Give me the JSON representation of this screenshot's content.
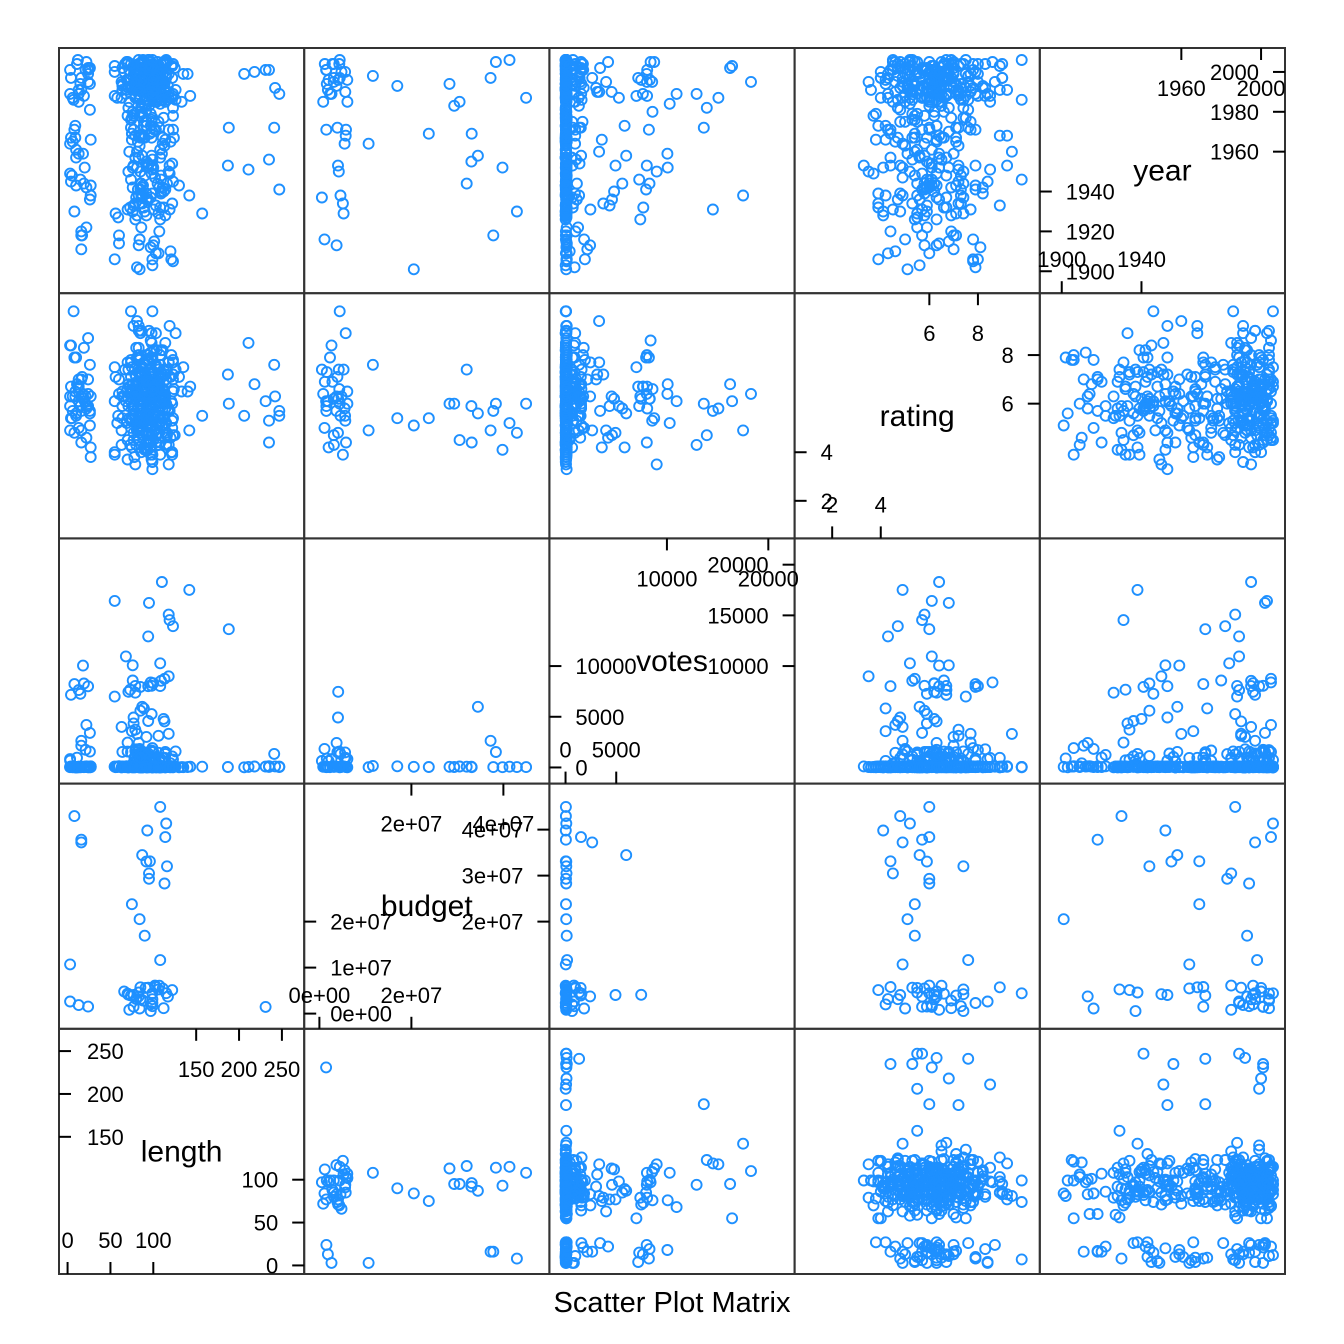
{
  "chart_data": {
    "type": "scatter",
    "title": "",
    "xlabel": "Scatter Plot Matrix",
    "ylabel": "",
    "grid": false,
    "legend": "none",
    "marker": "open-circle",
    "point_color": "#1E90FF",
    "variables": [
      {
        "name": "length",
        "ticks_bottom": [
          0,
          50,
          100
        ],
        "ticks_top": [
          150,
          200,
          250
        ],
        "tick_labels_bottom": [
          "0",
          "50",
          "100"
        ],
        "tick_labels_top": [
          "150",
          "200",
          "250"
        ]
      },
      {
        "name": "budget",
        "ticks_bottom": [
          0,
          20000000
        ],
        "ticks_top": [
          20000000,
          40000000
        ],
        "tick_labels_bottom": [
          "0e+00",
          "2e+07"
        ],
        "tick_labels_top": [
          "2e+07",
          "4e+07"
        ],
        "ticks_right": [
          20000000,
          30000000,
          40000000
        ],
        "tick_labels_right": [
          "2e+07",
          "3e+07",
          "4e+07"
        ],
        "ticks_left": [
          0,
          10000000,
          20000000
        ],
        "tick_labels_left": [
          "0e+00",
          "1e+07",
          "2e+07"
        ]
      },
      {
        "name": "votes",
        "ticks_bottom": [
          0,
          5000
        ],
        "ticks_top": [
          10000,
          20000
        ],
        "tick_labels_bottom": [
          "0",
          "5000"
        ],
        "tick_labels_top": [
          "10000",
          "20000"
        ],
        "ticks_right": [
          10000,
          15000,
          20000
        ],
        "tick_labels_right": [
          "10000",
          "15000",
          "20000"
        ],
        "ticks_left": [
          0,
          5000,
          10000
        ],
        "tick_labels_left": [
          "0",
          "5000",
          "10000"
        ]
      },
      {
        "name": "rating",
        "ticks_bottom": [
          2,
          4
        ],
        "ticks_top": [
          6,
          8
        ],
        "tick_labels_bottom": [
          "2",
          "4"
        ],
        "tick_labels_top": [
          "6",
          "8"
        ],
        "ticks_right": [
          6,
          8
        ],
        "tick_labels_right": [
          "6",
          "8"
        ],
        "ticks_left": [
          2,
          4
        ],
        "tick_labels_left": [
          "2",
          "4"
        ]
      },
      {
        "name": "year",
        "ticks_bottom": [
          1900,
          1940
        ],
        "ticks_top": [
          1960,
          2000
        ],
        "tick_labels_bottom": [
          "1900",
          "1940"
        ],
        "tick_labels_top": [
          "1960",
          "2000"
        ],
        "ticks_right": [
          1960,
          1980,
          2000
        ],
        "tick_labels_right": [
          "1960",
          "1980",
          "2000"
        ],
        "ticks_left": [
          1900,
          1920,
          1940
        ],
        "tick_labels_left": [
          "1900",
          "1920",
          "1940"
        ]
      }
    ],
    "ranges": {
      "length": [
        -3,
        269
      ],
      "budget": [
        -2000000,
        48700000
      ],
      "votes": [
        -1000,
        22000
      ],
      "rating": [
        0.7,
        10.3
      ],
      "year": [
        1892,
        2009
      ]
    },
    "point_count": 420,
    "sampling": {
      "seed": 20240611
    }
  }
}
